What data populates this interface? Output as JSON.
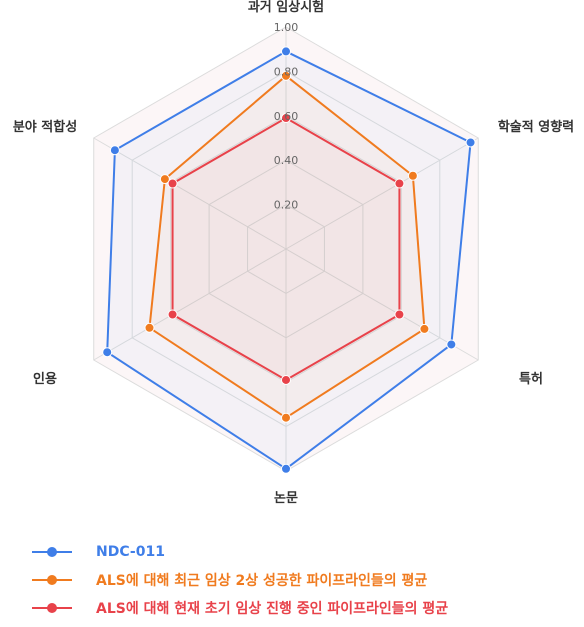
{
  "chart_data": {
    "type": "radar",
    "axes": [
      "과거 임상시험",
      "학술적 영향력",
      "특허",
      "논문",
      "인용",
      "분야 적합성"
    ],
    "ticks": [
      "0.20",
      "0.40",
      "0.60",
      "0.80",
      "1.00"
    ],
    "rlim": [
      0,
      1
    ],
    "grid": true,
    "legend_position": "bottom-left",
    "series": [
      {
        "name": "NDC-011",
        "color": "#3f7ee8",
        "values": [
          0.89,
          0.96,
          0.86,
          0.99,
          0.93,
          0.89
        ]
      },
      {
        "name": "ALS에 대해 최근 임상 2상 성공한 파이프라인들의 평균",
        "color": "#f07b1f",
        "values": [
          0.78,
          0.66,
          0.72,
          0.76,
          0.71,
          0.63
        ]
      },
      {
        "name": "ALS에 대해 현재 초기 임상 진행 중인 파이프라인들의 평균",
        "color": "#e8424a",
        "values": [
          0.59,
          0.59,
          0.59,
          0.59,
          0.59,
          0.59
        ]
      }
    ]
  }
}
